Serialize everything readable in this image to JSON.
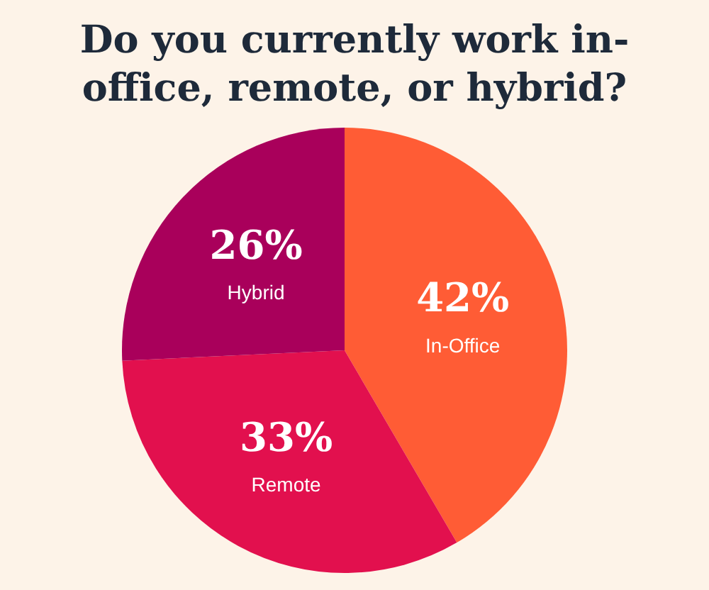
{
  "chart_data": {
    "type": "pie",
    "title": "Do you currently work in-office, remote, or hybrid?",
    "categories": [
      "In-Office",
      "Remote",
      "Hybrid"
    ],
    "values": [
      42,
      33,
      26
    ],
    "value_labels": [
      "42%",
      "33%",
      "26%"
    ],
    "colors": [
      "#ff5c35",
      "#e2104e",
      "#a9005b"
    ],
    "legend": false
  }
}
